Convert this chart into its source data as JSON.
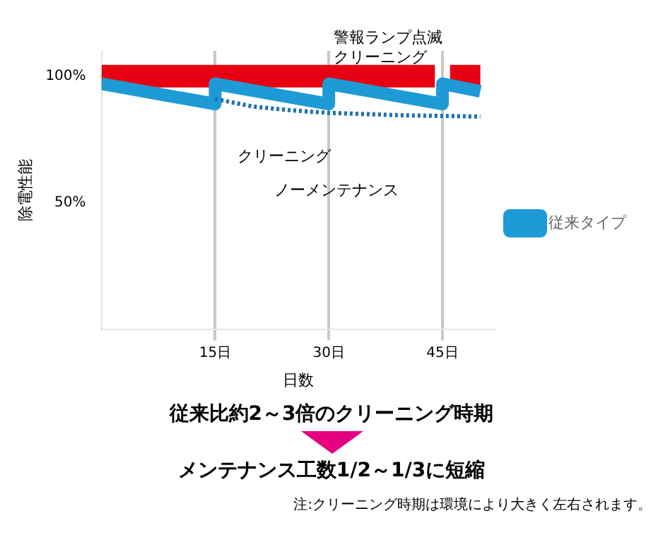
{
  "chart_data": {
    "type": "line",
    "xlabel": "日数",
    "ylabel": "除電性能",
    "xlim": [
      0,
      52
    ],
    "ylim": [
      0,
      110
    ],
    "xticks": [
      {
        "value": 15,
        "label": "15日"
      },
      {
        "value": 30,
        "label": "30日"
      },
      {
        "value": 45,
        "label": "45日"
      }
    ],
    "yticks": [
      {
        "value": 50,
        "label": "50%"
      },
      {
        "value": 100,
        "label": "100%"
      }
    ],
    "grid": "x",
    "legend": "right",
    "marker": "none",
    "series": [
      {
        "color": "#e60012",
        "x": [
          0,
          44,
          45,
          46,
          50
        ],
        "values": [
          100,
          100,
          null,
          100,
          100
        ]
      },
      {
        "name": "従来タイプ",
        "color": "#1e9ad6",
        "x": [
          0,
          15,
          15,
          30,
          30,
          45,
          45,
          50
        ],
        "values": [
          97,
          89,
          97,
          89,
          97,
          89,
          97,
          94
        ]
      },
      {
        "color": "#1e6fb8",
        "line_style": "dotted",
        "x": [
          15,
          20,
          25,
          30,
          35,
          40,
          45,
          50
        ],
        "values": [
          91,
          88,
          86.5,
          85.5,
          85,
          84.5,
          84.3,
          84
        ]
      }
    ],
    "annotations": [
      "警報ランプ点滅クリーニング",
      "クリーニング",
      "ノーメンテナンス",
      "従来比約2～3倍のクリーニング時期",
      "メンテナンス工数1/2～1/3に短縮",
      "注:クリーニング時期は環境により大きく左右されます。"
    ]
  }
}
